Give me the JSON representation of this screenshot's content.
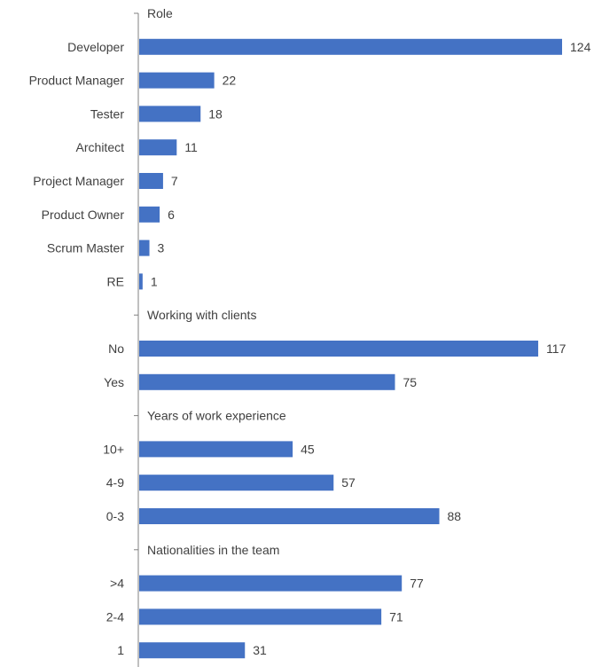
{
  "chart_data": {
    "type": "bar",
    "orientation": "horizontal",
    "grouped": true,
    "bar_color": "#4472C4",
    "xlim": [
      0,
      124
    ],
    "grid": false,
    "legend": "none",
    "groups": [
      {
        "name": "Role",
        "categories": [
          "Developer",
          "Product Manager",
          "Tester",
          "Architect",
          "Project Manager",
          "Product Owner",
          "Scrum Master",
          "RE"
        ],
        "values": [
          124,
          22,
          18,
          11,
          7,
          6,
          3,
          1
        ]
      },
      {
        "name": "Working with clients",
        "categories": [
          "No",
          "Yes"
        ],
        "values": [
          117,
          75
        ]
      },
      {
        "name": "Years of work experience",
        "categories": [
          "10+",
          "4-9",
          "0-3"
        ],
        "values": [
          45,
          57,
          88
        ]
      },
      {
        "name": "Nationalities in the team",
        "categories": [
          ">4",
          "2-4",
          "1"
        ],
        "values": [
          77,
          71,
          31
        ]
      }
    ]
  }
}
